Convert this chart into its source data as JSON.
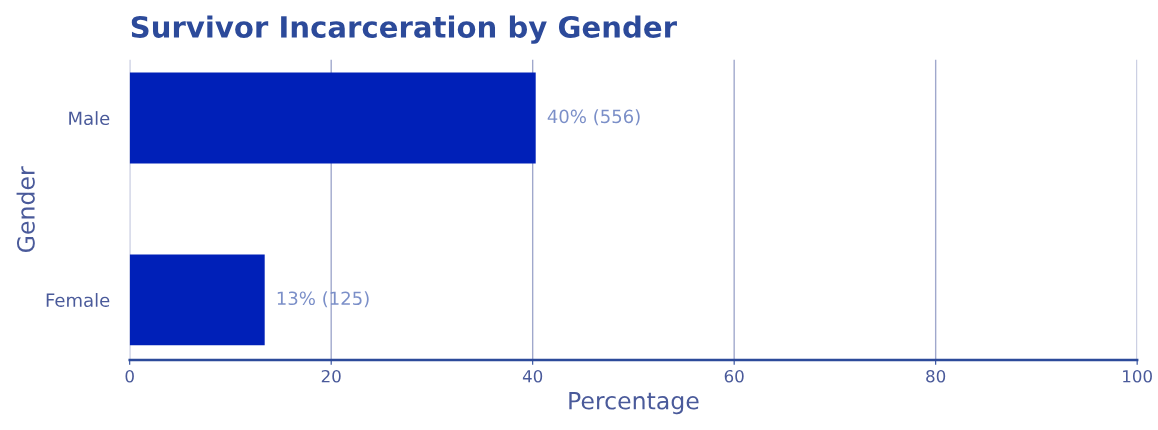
{
  "chart_data": {
    "type": "bar",
    "orientation": "horizontal",
    "title": "Survivor Incarceration by Gender",
    "xlabel": "Percentage",
    "ylabel": "Gender",
    "categories": [
      "Male",
      "Female"
    ],
    "values": [
      40.3,
      13.4
    ],
    "value_labels": [
      "40% (556)",
      "13% (125)"
    ],
    "color": "#0020b8",
    "xlim": [
      0,
      100
    ],
    "xticks": [
      0,
      20,
      40,
      60,
      80,
      100
    ],
    "grid": "x"
  }
}
